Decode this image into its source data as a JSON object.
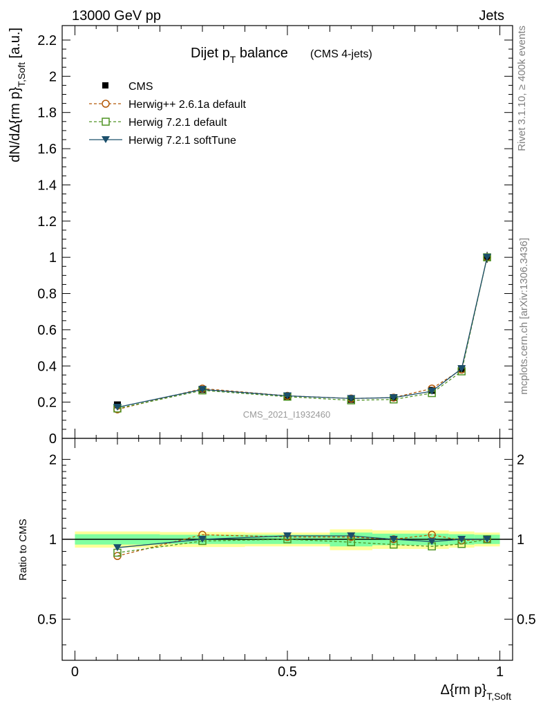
{
  "header": {
    "left": "13000 GeV pp",
    "right": "Jets"
  },
  "title": {
    "main": "Dijet p",
    "main_sub": "T",
    "main_rest": " balance",
    "sub": "(CMS 4-jets)"
  },
  "side_labels": {
    "rivet": "Rivet 3.1.10, ≥ 400k events",
    "mcplots": "mcplots.cern.ch [arXiv:1306.3436]"
  },
  "watermark": "CMS_2021_I1932460",
  "axes": {
    "ylabel_upper_main": "dN/dΔ{rm p}",
    "ylabel_upper_sub": "T,Soft",
    "ylabel_upper_unit": " [a.u.]",
    "ylabel_lower": "Ratio to CMS",
    "xlabel_main": "Δ{rm p}",
    "xlabel_sub": "T,Soft",
    "upper_yticks": [
      "0",
      "0.2",
      "0.4",
      "0.6",
      "0.8",
      "1",
      "1.2",
      "1.4",
      "1.6",
      "1.8",
      "2",
      "2.2"
    ],
    "lower_yticks": [
      "0.5",
      "1",
      "2"
    ],
    "xticks": [
      "0",
      "0.5",
      "1"
    ]
  },
  "legend": [
    {
      "label": "CMS",
      "color": "#000000",
      "marker": "square-filled",
      "line": "none"
    },
    {
      "label": "Herwig++ 2.6.1a default",
      "color": "#b35806",
      "marker": "circle-open",
      "line": "dashed"
    },
    {
      "label": "Herwig 7.2.1 default",
      "color": "#4d9221",
      "marker": "square-open",
      "line": "dashed"
    },
    {
      "label": "Herwig 7.2.1 softTune",
      "color": "#1b4f6b",
      "marker": "triangle-down-filled",
      "line": "solid"
    }
  ],
  "chart_data": [
    {
      "type": "scatter",
      "panel": "main",
      "xlabel": "Δ{rm p}_T,Soft",
      "ylabel": "dN/dΔ{rm p}_T,Soft [a.u.]",
      "xlim": [
        -0.03,
        1.03
      ],
      "ylim": [
        0,
        2.28
      ],
      "grid": false,
      "legend_position": "top-left",
      "x": [
        0.1,
        0.3,
        0.5,
        0.65,
        0.75,
        0.84,
        0.91,
        0.97
      ],
      "series": [
        {
          "name": "CMS",
          "values": [
            0.185,
            0.27,
            0.23,
            0.215,
            0.225,
            0.265,
            0.385,
            1.0
          ],
          "errors": [
            0.008,
            0.01,
            0.008,
            0.008,
            0.008,
            0.01,
            0.015,
            0.03
          ]
        },
        {
          "name": "Herwig++ 2.6.1a default",
          "values": [
            0.16,
            0.275,
            0.235,
            0.22,
            0.225,
            0.275,
            0.38,
            1.0
          ]
        },
        {
          "name": "Herwig 7.2.1 default",
          "values": [
            0.165,
            0.265,
            0.23,
            0.21,
            0.215,
            0.25,
            0.37,
            1.0
          ]
        },
        {
          "name": "Herwig 7.2.1 softTune",
          "values": [
            0.172,
            0.27,
            0.235,
            0.22,
            0.225,
            0.26,
            0.385,
            1.0
          ]
        }
      ]
    },
    {
      "type": "scatter",
      "panel": "ratio",
      "ylabel": "Ratio to CMS",
      "xlim": [
        -0.03,
        1.03
      ],
      "ylim": [
        0.35,
        2.4
      ],
      "yscale": "log",
      "grid": false,
      "x": [
        0.1,
        0.3,
        0.5,
        0.65,
        0.75,
        0.84,
        0.91,
        0.97
      ],
      "bands": {
        "x_edges": [
          0.0,
          0.2,
          0.4,
          0.6,
          0.7,
          0.8,
          0.88,
          0.94,
          1.0
        ],
        "outer": [
          0.07,
          0.065,
          0.06,
          0.09,
          0.08,
          0.08,
          0.07,
          0.06
        ],
        "inner": [
          0.045,
          0.04,
          0.04,
          0.06,
          0.05,
          0.05,
          0.045,
          0.04
        ]
      },
      "series": [
        {
          "name": "Herwig++ 2.6.1a default",
          "values": [
            0.865,
            1.04,
            1.02,
            1.02,
            1.0,
            1.04,
            0.99,
            1.0
          ]
        },
        {
          "name": "Herwig 7.2.1 default",
          "values": [
            0.89,
            0.985,
            1.0,
            0.975,
            0.955,
            0.94,
            0.96,
            1.0
          ]
        },
        {
          "name": "Herwig 7.2.1 softTune",
          "values": [
            0.93,
            1.0,
            1.03,
            1.03,
            1.0,
            0.98,
            1.0,
            1.0
          ]
        }
      ]
    }
  ]
}
